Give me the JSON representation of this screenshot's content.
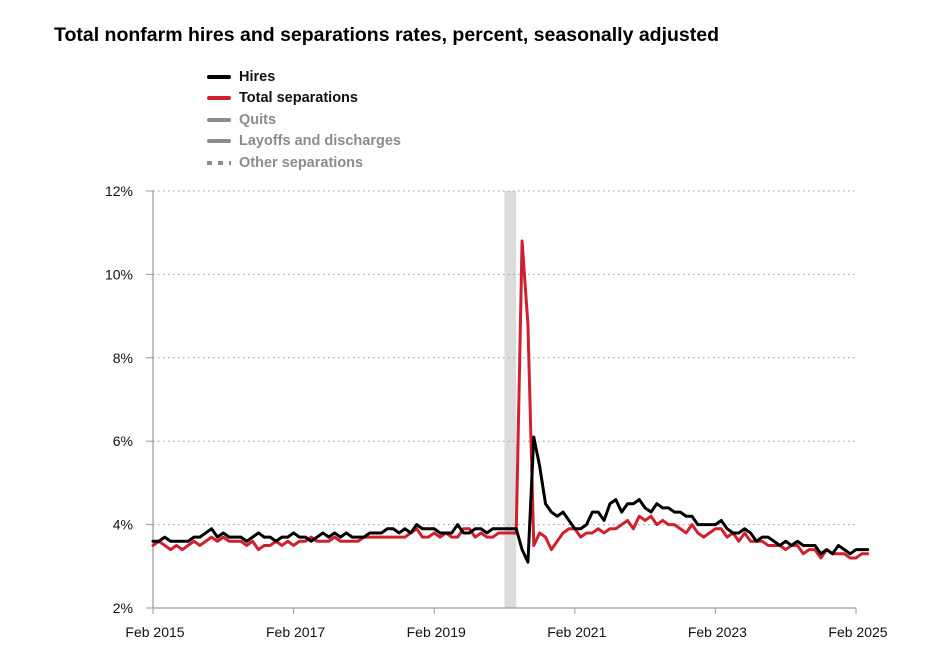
{
  "title": "Total nonfarm hires and separations rates, percent, seasonally adjusted",
  "legend": [
    {
      "label": "Hires",
      "color": "#000000",
      "style": "solid",
      "active": true
    },
    {
      "label": "Total separations",
      "color": "#d0202e",
      "style": "solid",
      "active": true
    },
    {
      "label": "Quits",
      "color": "#8c8c8c",
      "style": "solid",
      "active": false
    },
    {
      "label": "Layoffs and discharges",
      "color": "#8c8c8c",
      "style": "solid",
      "active": false
    },
    {
      "label": "Other separations",
      "color": "#8c8c8c",
      "style": "dotted",
      "active": false
    }
  ],
  "chart_data": {
    "type": "line",
    "title": "Total nonfarm hires and separations rates, percent, seasonally adjusted",
    "x_start": "2015-02",
    "x_end": "2025-02",
    "x_ticks": [
      "Feb 2015",
      "Feb 2017",
      "Feb 2019",
      "Feb 2021",
      "Feb 2023",
      "Feb 2025"
    ],
    "y_ticks": [
      "2%",
      "4%",
      "6%",
      "8%",
      "10%",
      "12%"
    ],
    "ylim": [
      2,
      12
    ],
    "grid": "horizontal dotted",
    "legend_position": "top-left",
    "recession_shading": {
      "start": "2020-02",
      "end": "2020-04",
      "color": "#dcdcdc"
    },
    "series": [
      {
        "name": "Hires",
        "color": "#000000",
        "values": [
          3.6,
          3.6,
          3.7,
          3.6,
          3.6,
          3.6,
          3.6,
          3.7,
          3.7,
          3.8,
          3.9,
          3.7,
          3.8,
          3.7,
          3.7,
          3.7,
          3.6,
          3.7,
          3.8,
          3.7,
          3.7,
          3.6,
          3.7,
          3.7,
          3.8,
          3.7,
          3.7,
          3.6,
          3.7,
          3.8,
          3.7,
          3.8,
          3.7,
          3.8,
          3.7,
          3.7,
          3.7,
          3.8,
          3.8,
          3.8,
          3.9,
          3.9,
          3.8,
          3.9,
          3.8,
          4.0,
          3.9,
          3.9,
          3.9,
          3.8,
          3.8,
          3.8,
          4.0,
          3.8,
          3.8,
          3.9,
          3.9,
          3.8,
          3.9,
          3.9,
          3.9,
          3.9,
          3.9,
          3.4,
          3.1,
          6.1,
          5.4,
          4.5,
          4.3,
          4.2,
          4.3,
          4.1,
          3.9,
          3.9,
          4.0,
          4.3,
          4.3,
          4.1,
          4.5,
          4.6,
          4.3,
          4.5,
          4.5,
          4.6,
          4.4,
          4.3,
          4.5,
          4.4,
          4.4,
          4.3,
          4.3,
          4.2,
          4.2,
          4.0,
          4.0,
          4.0,
          4.0,
          4.1,
          3.9,
          3.8,
          3.8,
          3.9,
          3.8,
          3.6,
          3.7,
          3.7,
          3.6,
          3.5,
          3.6,
          3.5,
          3.6,
          3.5,
          3.5,
          3.5,
          3.3,
          3.4,
          3.3,
          3.5,
          3.4,
          3.3,
          3.4,
          3.4,
          3.4
        ]
      },
      {
        "name": "Total separations",
        "color": "#d0202e",
        "values": [
          3.5,
          3.6,
          3.5,
          3.4,
          3.5,
          3.4,
          3.5,
          3.6,
          3.5,
          3.6,
          3.7,
          3.6,
          3.7,
          3.6,
          3.6,
          3.6,
          3.5,
          3.6,
          3.4,
          3.5,
          3.5,
          3.6,
          3.5,
          3.6,
          3.5,
          3.6,
          3.6,
          3.7,
          3.6,
          3.6,
          3.6,
          3.7,
          3.6,
          3.6,
          3.6,
          3.6,
          3.7,
          3.7,
          3.7,
          3.7,
          3.7,
          3.7,
          3.7,
          3.7,
          3.8,
          3.9,
          3.7,
          3.7,
          3.8,
          3.7,
          3.8,
          3.7,
          3.7,
          3.9,
          3.9,
          3.7,
          3.8,
          3.7,
          3.7,
          3.8,
          3.8,
          3.8,
          3.8,
          10.8,
          8.8,
          3.5,
          3.8,
          3.7,
          3.4,
          3.6,
          3.8,
          3.9,
          3.9,
          3.7,
          3.8,
          3.8,
          3.9,
          3.8,
          3.9,
          3.9,
          4.0,
          4.1,
          3.9,
          4.2,
          4.1,
          4.2,
          4.0,
          4.1,
          4.0,
          4.0,
          3.9,
          3.8,
          4.0,
          3.8,
          3.7,
          3.8,
          3.9,
          3.9,
          3.7,
          3.8,
          3.6,
          3.8,
          3.6,
          3.6,
          3.6,
          3.5,
          3.5,
          3.5,
          3.4,
          3.5,
          3.5,
          3.3,
          3.4,
          3.4,
          3.2,
          3.4,
          3.3,
          3.3,
          3.3,
          3.2,
          3.2,
          3.3,
          3.3
        ]
      }
    ]
  }
}
